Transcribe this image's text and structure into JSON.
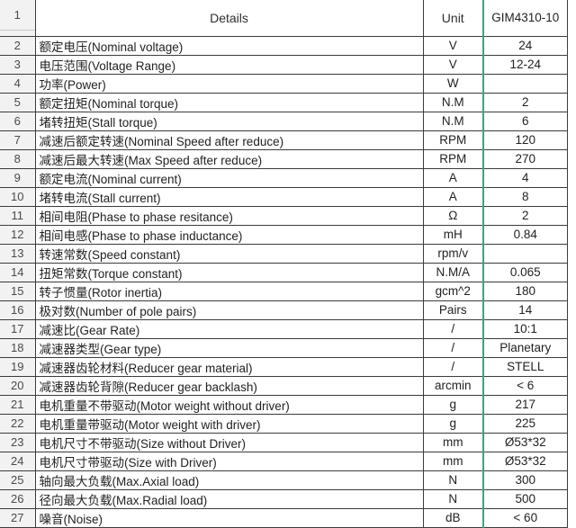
{
  "colors": {
    "grid": "#3b3b3b",
    "green_separator": "#3ca57c",
    "gutter_bg": "#f2f2f2",
    "gutter_gridline": "#c6c6c6",
    "text": "#222222"
  },
  "table": {
    "header": {
      "num": "1",
      "details": "Details",
      "unit": "Unit",
      "model": "GIM4310-10"
    },
    "rows": [
      {
        "num": "2",
        "details": "额定电压(Nominal voltage)",
        "unit": "V",
        "value": "24"
      },
      {
        "num": "3",
        "details": "电压范围(Voltage Range)",
        "unit": "V",
        "value": "12-24"
      },
      {
        "num": "4",
        "details": "功率(Power)",
        "unit": "W",
        "value": ""
      },
      {
        "num": "5",
        "details": "额定扭矩(Nominal torque)",
        "unit": "N.M",
        "value": "2"
      },
      {
        "num": "6",
        "details": "堵转扭矩(Stall torque)",
        "unit": "N.M",
        "value": "6"
      },
      {
        "num": "7",
        "details": "减速后额定转速(Nominal Speed after reduce)",
        "unit": "RPM",
        "value": "120"
      },
      {
        "num": "8",
        "details": "减速后最大转速(Max Speed after reduce)",
        "unit": "RPM",
        "value": "270"
      },
      {
        "num": "9",
        "details": "额定电流(Nominal current)",
        "unit": "A",
        "value": "4"
      },
      {
        "num": "10",
        "details": "堵转电流(Stall current)",
        "unit": "A",
        "value": "8"
      },
      {
        "num": "11",
        "details": "相间电阻(Phase to phase resitance)",
        "unit": "Ω",
        "value": "2"
      },
      {
        "num": "12",
        "details": "相间电感(Phase to phase inductance)",
        "unit": "mH",
        "value": "0.84"
      },
      {
        "num": "13",
        "details": "转速常数(Speed constant)",
        "unit": "rpm/v",
        "value": ""
      },
      {
        "num": "14",
        "details": "扭矩常数(Torque constant)",
        "unit": "N.M/A",
        "value": "0.065"
      },
      {
        "num": "15",
        "details": "转子惯量(Rotor inertia)",
        "unit": "gcm^2",
        "value": "180"
      },
      {
        "num": "16",
        "details": "极对数(Number of pole pairs)",
        "unit": "Pairs",
        "value": "14"
      },
      {
        "num": "17",
        "details": "减速比(Gear Rate)",
        "unit": "/",
        "value": "10:1"
      },
      {
        "num": "18",
        "details": "减速器类型(Gear type)",
        "unit": "/",
        "value": "Planetary"
      },
      {
        "num": "19",
        "details": "减速器齿轮材料(Reducer gear material)",
        "unit": "/",
        "value": "STELL"
      },
      {
        "num": "20",
        "details": "减速器齿轮背隙(Reducer gear backlash)",
        "unit": "arcmin",
        "value": "< 6"
      },
      {
        "num": "21",
        "details": "电机重量不带驱动(Motor weight without driver)",
        "unit": "g",
        "value": "217"
      },
      {
        "num": "22",
        "details": "电机重量带驱动(Motor weight with driver)",
        "unit": "g",
        "value": "225"
      },
      {
        "num": "23",
        "details": "电机尺寸不带驱动(Size without Driver)",
        "unit": "mm",
        "value": "Ø53*32"
      },
      {
        "num": "24",
        "details": "电机尺寸带驱动(Size with Driver)",
        "unit": "mm",
        "value": "Ø53*32"
      },
      {
        "num": "25",
        "details": "轴向最大负载(Max.Axial load)",
        "unit": "N",
        "value": "300"
      },
      {
        "num": "26",
        "details": "径向最大负载(Max.Radial load)",
        "unit": "N",
        "value": "500"
      },
      {
        "num": "27",
        "details": "噪音(Noise)",
        "unit": "dB",
        "value": "< 60"
      }
    ]
  }
}
